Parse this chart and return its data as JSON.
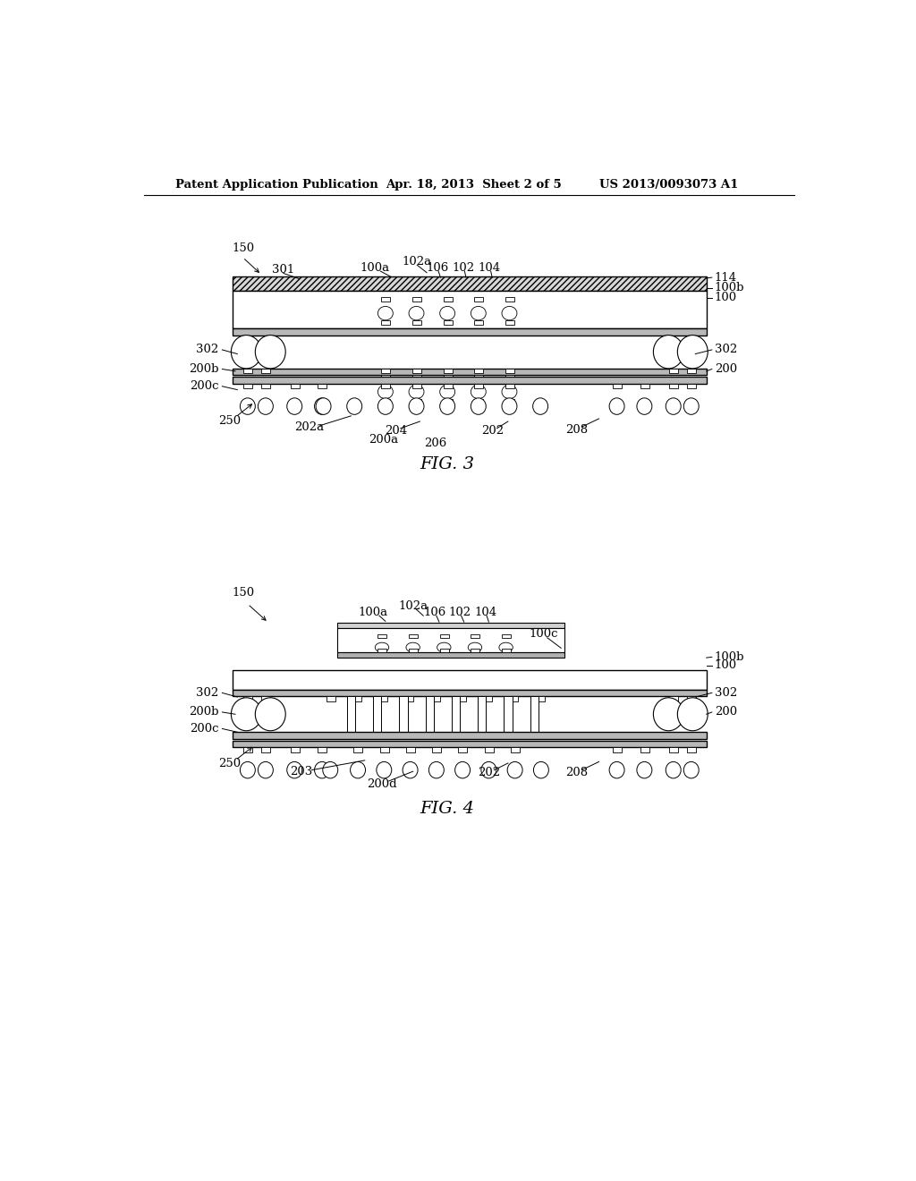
{
  "bg_color": "#ffffff",
  "header_left": "Patent Application Publication",
  "header_center": "Apr. 18, 2013  Sheet 2 of 5",
  "header_right": "US 2013/0093073 A1",
  "fig3_caption": "FIG. 3",
  "fig4_caption": "FIG. 4"
}
